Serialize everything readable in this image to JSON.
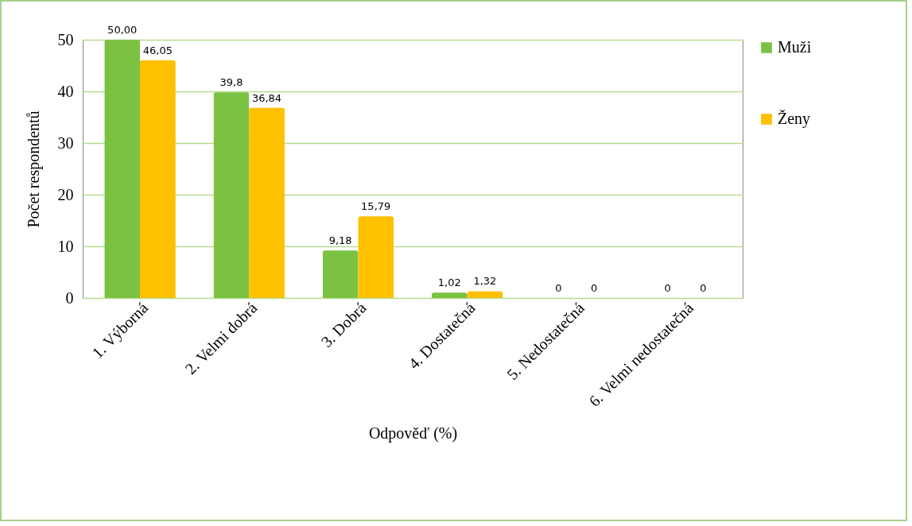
{
  "chart_data": {
    "type": "bar",
    "xlabel": "Odpověď (%)",
    "ylabel": "Počet respondentů",
    "categories": [
      "1. Výborná",
      "2. Velmi dobrá",
      "3. Dobrá",
      "4. Dostatečná",
      "5. Nedostatečná",
      "6. Velmi nedostatečná"
    ],
    "series": [
      {
        "name": "Muži",
        "color": "#7cc242",
        "values": [
          50.0,
          39.8,
          9.18,
          1.02,
          0,
          0
        ],
        "value_labels": [
          "50,00",
          "39,8",
          "9,18",
          "1,02",
          "0",
          "0"
        ]
      },
      {
        "name": "Ženy",
        "color": "#ffc000",
        "values": [
          46.05,
          36.84,
          15.79,
          1.32,
          0,
          0
        ],
        "value_labels": [
          "46,05",
          "36,84",
          "15,79",
          "1,32",
          "0",
          "0"
        ]
      }
    ],
    "ylim": [
      0,
      50
    ],
    "yticks": [
      0,
      10,
      20,
      30,
      40,
      50
    ],
    "grid": "y",
    "legend": "right"
  }
}
